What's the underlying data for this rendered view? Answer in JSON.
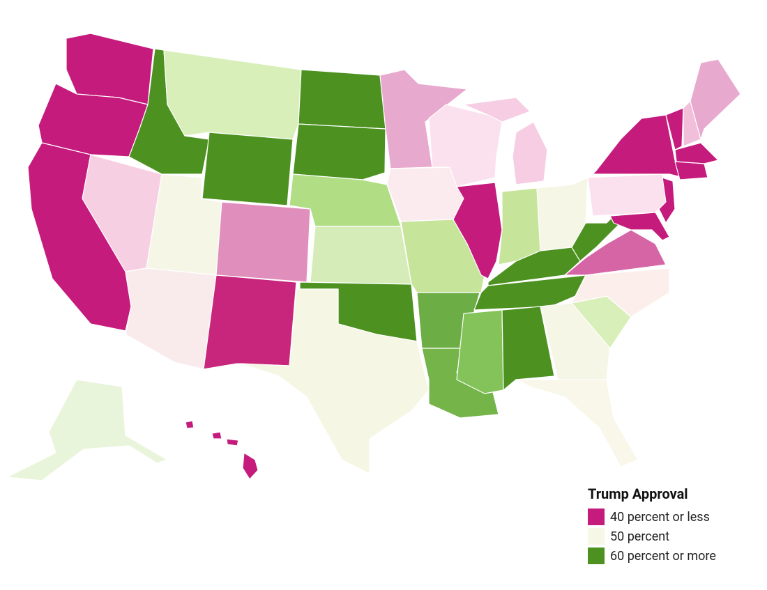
{
  "legend": {
    "title": "Trump Approval",
    "items": [
      {
        "label": "40 percent or less",
        "color": "#c51b7d"
      },
      {
        "label": "50 percent",
        "color": "#f7f7e8"
      },
      {
        "label": "60 percent or more",
        "color": "#4d9221"
      }
    ]
  }
}
